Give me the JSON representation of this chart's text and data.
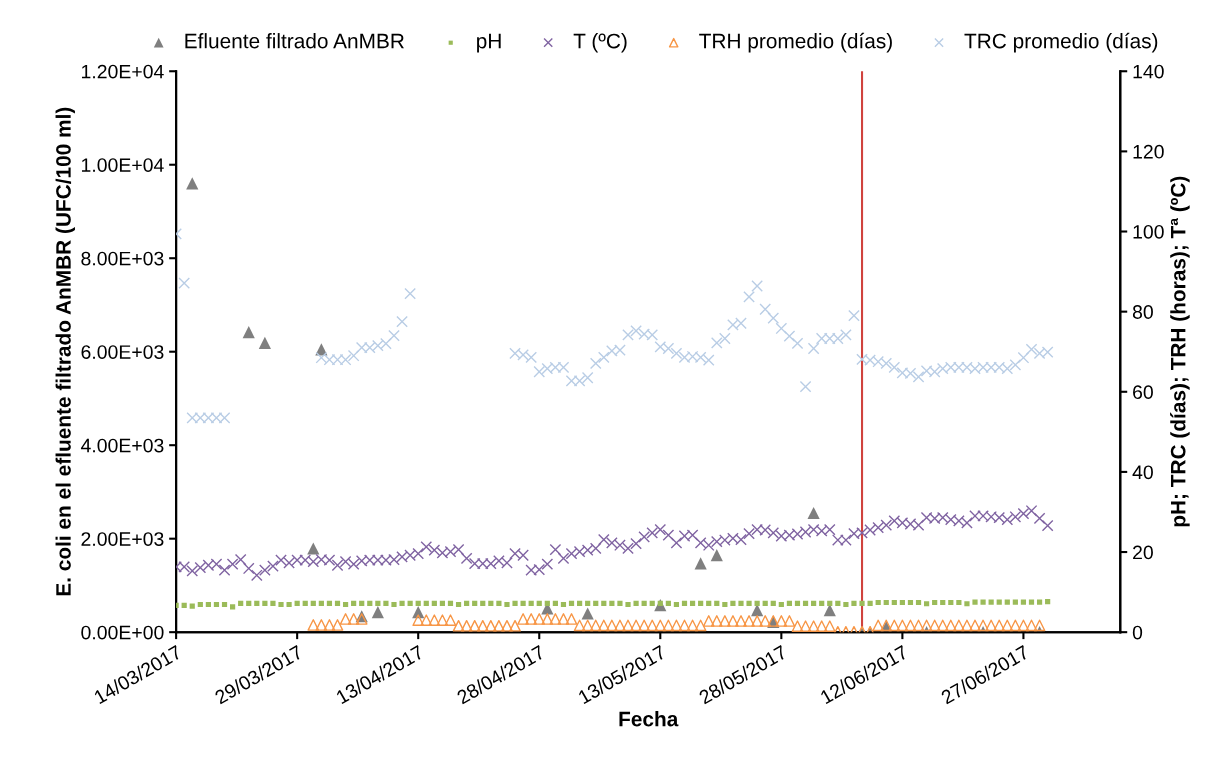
{
  "chart_data": {
    "type": "scatter",
    "xlabel": "Fecha",
    "ylabel": "E. coli en el efluente filtrado AnMBR (UFC/100 ml)",
    "y2label": "pH; TRC (días); TRH (horas); Tª (ºC)",
    "legend": "top",
    "grid": false,
    "x": [
      "2017-03-14",
      "2017-03-15",
      "2017-03-16",
      "2017-03-17",
      "2017-03-18",
      "2017-03-19",
      "2017-03-20",
      "2017-03-21",
      "2017-03-22",
      "2017-03-23",
      "2017-03-24",
      "2017-03-25",
      "2017-03-26",
      "2017-03-27",
      "2017-03-28",
      "2017-03-29",
      "2017-03-30",
      "2017-03-31",
      "2017-04-01",
      "2017-04-02",
      "2017-04-03",
      "2017-04-04",
      "2017-04-05",
      "2017-04-06",
      "2017-04-07",
      "2017-04-08",
      "2017-04-09",
      "2017-04-10",
      "2017-04-11",
      "2017-04-12",
      "2017-04-13",
      "2017-04-14",
      "2017-04-15",
      "2017-04-16",
      "2017-04-17",
      "2017-04-18",
      "2017-04-19",
      "2017-04-20",
      "2017-04-21",
      "2017-04-22",
      "2017-04-23",
      "2017-04-24",
      "2017-04-25",
      "2017-04-26",
      "2017-04-27",
      "2017-04-28",
      "2017-04-29",
      "2017-04-30",
      "2017-05-01",
      "2017-05-02",
      "2017-05-03",
      "2017-05-04",
      "2017-05-05",
      "2017-05-06",
      "2017-05-07",
      "2017-05-08",
      "2017-05-09",
      "2017-05-10",
      "2017-05-11",
      "2017-05-12",
      "2017-05-13",
      "2017-05-14",
      "2017-05-15",
      "2017-05-16",
      "2017-05-17",
      "2017-05-18",
      "2017-05-19",
      "2017-05-20",
      "2017-05-21",
      "2017-05-22",
      "2017-05-23",
      "2017-05-24",
      "2017-05-25",
      "2017-05-26",
      "2017-05-27",
      "2017-05-28",
      "2017-05-29",
      "2017-05-30",
      "2017-05-31",
      "2017-06-01",
      "2017-06-02",
      "2017-06-03",
      "2017-06-04",
      "2017-06-05",
      "2017-06-06",
      "2017-06-07",
      "2017-06-08",
      "2017-06-09",
      "2017-06-10",
      "2017-06-11",
      "2017-06-12",
      "2017-06-13",
      "2017-06-14",
      "2017-06-15",
      "2017-06-16",
      "2017-06-17",
      "2017-06-18",
      "2017-06-19",
      "2017-06-20",
      "2017-06-21",
      "2017-06-22",
      "2017-06-23",
      "2017-06-24",
      "2017-06-25",
      "2017-06-26",
      "2017-06-27",
      "2017-06-28",
      "2017-06-29",
      "2017-06-30"
    ],
    "xlim": [
      "2017-03-14",
      "2017-07-09"
    ],
    "xticks": [
      {
        "value": "2017-03-14",
        "label": "14/03/2017"
      },
      {
        "value": "2017-03-29",
        "label": "29/03/2017"
      },
      {
        "value": "2017-04-13",
        "label": "13/04/2017"
      },
      {
        "value": "2017-04-28",
        "label": "28/04/2017"
      },
      {
        "value": "2017-05-13",
        "label": "13/05/2017"
      },
      {
        "value": "2017-05-28",
        "label": "28/05/2017"
      },
      {
        "value": "2017-06-12",
        "label": "12/06/2017"
      },
      {
        "value": "2017-06-27",
        "label": "27/06/2017"
      }
    ],
    "ylim": [
      0,
      12000
    ],
    "yticks": [
      {
        "value": 0,
        "label": "0.00E+00"
      },
      {
        "value": 2000,
        "label": "2.00E+03"
      },
      {
        "value": 4000,
        "label": "4.00E+03"
      },
      {
        "value": 6000,
        "label": "6.00E+03"
      },
      {
        "value": 8000,
        "label": "8.00E+03"
      },
      {
        "value": 10000,
        "label": "1.00E+04"
      },
      {
        "value": 12000,
        "label": "1.20E+04"
      }
    ],
    "y2lim": [
      0,
      140
    ],
    "y2ticks": [
      0,
      20,
      40,
      60,
      80,
      100,
      120,
      140
    ],
    "ref_lines": [
      {
        "axis": "x",
        "value": "2017-06-07",
        "color": "#d0433e"
      }
    ],
    "series": [
      {
        "name": "Efluente filtrado AnMBR",
        "color": "#7f7f7f",
        "marker": "triangle",
        "values": [
          null,
          null,
          9600,
          null,
          null,
          null,
          null,
          null,
          null,
          6420,
          null,
          6190,
          null,
          null,
          null,
          null,
          null,
          1790,
          6050,
          null,
          null,
          null,
          null,
          340,
          null,
          430,
          null,
          null,
          null,
          null,
          430,
          null,
          null,
          null,
          null,
          null,
          null,
          null,
          null,
          null,
          null,
          null,
          null,
          null,
          null,
          null,
          510,
          null,
          null,
          null,
          null,
          400,
          null,
          null,
          null,
          null,
          null,
          null,
          null,
          null,
          580,
          null,
          null,
          null,
          null,
          1470,
          null,
          1650,
          null,
          null,
          null,
          null,
          470,
          null,
          220,
          null,
          null,
          null,
          null,
          2550,
          null,
          470,
          null,
          null,
          null,
          0,
          0,
          null,
          110,
          null,
          null,
          null,
          null,
          0,
          null,
          null,
          null,
          null,
          null,
          null,
          0,
          null,
          null,
          null,
          null,
          null,
          null,
          0,
          null
        ]
      },
      {
        "name": "pH",
        "color": "#9bbb59",
        "marker": "square",
        "axis": "y2",
        "values": [
          6.7,
          6.7,
          6.5,
          6.9,
          6.9,
          6.9,
          6.9,
          6.3,
          7.2,
          7.2,
          7.2,
          7.2,
          7.2,
          6.9,
          6.9,
          7.2,
          7.2,
          7.2,
          7.2,
          7.2,
          7.2,
          6.9,
          7.2,
          7.2,
          7.2,
          7.2,
          7.2,
          6.9,
          7.2,
          7.2,
          7.2,
          7.2,
          7.2,
          7.2,
          7.2,
          6.9,
          7.2,
          7.2,
          7.2,
          7.2,
          7.2,
          6.9,
          7.2,
          7.2,
          7.2,
          7.2,
          7.2,
          7.2,
          6.9,
          7.2,
          7.2,
          7.2,
          7.2,
          7.2,
          7.2,
          7.2,
          6.9,
          7.2,
          7.2,
          7.2,
          7.2,
          7.2,
          6.9,
          7.2,
          7.2,
          7.2,
          7.2,
          7.2,
          6.9,
          7.2,
          7.2,
          7.2,
          7.2,
          7.2,
          7.2,
          6.9,
          7.2,
          7.2,
          7.2,
          7.2,
          7.2,
          7.2,
          7.2,
          6.9,
          7.2,
          7.2,
          7.2,
          7.4,
          7.4,
          7.4,
          7.4,
          7.4,
          7.4,
          7.1,
          7.4,
          7.4,
          7.4,
          7.4,
          7.1,
          7.5,
          7.5,
          7.5,
          7.5,
          7.5,
          7.5,
          7.5,
          7.5,
          7.5,
          7.6
        ]
      },
      {
        "name": "T (ºC)",
        "color": "#8064a2",
        "marker": "cross",
        "axis": "y2",
        "values": [
          16.3,
          16.3,
          15.3,
          16.1,
          16.7,
          17.0,
          15.5,
          17.0,
          18.1,
          15.9,
          14.2,
          15.5,
          16.5,
          18.0,
          17.3,
          18.0,
          18.0,
          17.6,
          18.1,
          18.0,
          16.7,
          17.6,
          17.0,
          17.8,
          18.0,
          18.0,
          18.0,
          18.1,
          18.8,
          19.2,
          19.6,
          21.3,
          20.5,
          19.8,
          20.1,
          20.6,
          18.4,
          17.1,
          17.1,
          17.1,
          17.8,
          17.3,
          19.6,
          19.2,
          15.5,
          15.6,
          17.0,
          20.6,
          18.4,
          19.6,
          20.1,
          20.5,
          20.9,
          23.1,
          22.3,
          21.7,
          20.9,
          22.1,
          23.8,
          24.8,
          25.6,
          24.2,
          22.3,
          24.0,
          24.2,
          22.3,
          21.7,
          22.6,
          23.0,
          23.4,
          23.1,
          24.6,
          25.6,
          25.5,
          24.8,
          24.0,
          24.2,
          24.5,
          25.0,
          25.6,
          25.3,
          25.6,
          23.0,
          23.0,
          24.6,
          24.8,
          25.5,
          26.1,
          26.7,
          27.8,
          27.3,
          27.0,
          26.7,
          28.6,
          28.4,
          28.6,
          28.1,
          27.8,
          27.3,
          29.0,
          29.0,
          28.8,
          28.6,
          28.1,
          28.8,
          29.6,
          30.3,
          28.4,
          26.6
        ]
      },
      {
        "name": "TRH promedio (días)",
        "color": "#f79646",
        "marker": "triangle",
        "axis": "y2",
        "values": [
          null,
          null,
          null,
          null,
          null,
          null,
          null,
          null,
          null,
          null,
          null,
          null,
          null,
          null,
          null,
          null,
          null,
          1.8,
          1.8,
          1.8,
          1.8,
          3.3,
          3.3,
          3.3,
          null,
          null,
          null,
          null,
          null,
          null,
          3.0,
          3.0,
          3.0,
          3.0,
          3.0,
          1.6,
          1.6,
          1.6,
          1.6,
          1.6,
          1.6,
          1.6,
          1.6,
          3.3,
          3.3,
          3.3,
          3.3,
          3.3,
          3.3,
          3.3,
          1.7,
          1.7,
          1.7,
          1.7,
          1.7,
          1.7,
          1.7,
          1.7,
          1.7,
          1.7,
          1.7,
          1.7,
          1.7,
          1.7,
          1.7,
          1.7,
          2.8,
          2.8,
          2.8,
          2.8,
          2.8,
          2.8,
          2.8,
          2.8,
          2.8,
          2.8,
          2.8,
          1.5,
          1.5,
          1.5,
          1.5,
          1.5,
          0.1,
          0.1,
          0.1,
          0.1,
          0.1,
          1.7,
          1.7,
          1.7,
          1.7,
          1.7,
          1.7,
          1.7,
          1.7,
          1.7,
          1.7,
          1.7,
          1.7,
          1.7,
          1.7,
          1.7,
          1.7,
          1.7,
          1.7,
          1.7,
          1.7,
          1.7,
          null
        ]
      },
      {
        "name": "TRC promedio (días)",
        "color": "#b9cde5",
        "marker": "cross",
        "axis": "y2",
        "values": [
          99.4,
          87.1,
          53.5,
          53.5,
          53.5,
          53.5,
          53.5,
          null,
          null,
          null,
          null,
          null,
          null,
          null,
          null,
          null,
          null,
          null,
          68.5,
          68.0,
          68.0,
          68.0,
          69.0,
          71.0,
          71.0,
          71.5,
          72.0,
          74.0,
          77.5,
          84.5,
          null,
          null,
          null,
          null,
          null,
          null,
          null,
          null,
          null,
          null,
          null,
          null,
          69.6,
          69.2,
          68.6,
          65.0,
          65.8,
          66.1,
          66.1,
          62.7,
          62.7,
          63.5,
          67.1,
          68.6,
          70.2,
          70.4,
          74.2,
          75.2,
          74.4,
          74.2,
          71.2,
          70.8,
          69.6,
          68.6,
          68.8,
          68.6,
          67.9,
          72.2,
          73.3,
          76.7,
          77.1,
          83.7,
          86.4,
          80.6,
          78.4,
          75.8,
          73.9,
          72.1,
          61.3,
          70.8,
          73.3,
          73.3,
          73.3,
          74.2,
          79.0,
          68.1,
          67.9,
          67.5,
          67.1,
          66.1,
          64.7,
          64.6,
          63.7,
          65.2,
          65.0,
          65.8,
          66.1,
          66.1,
          66.1,
          65.8,
          66.1,
          66.1,
          66.1,
          65.8,
          66.7,
          68.5,
          70.6,
          69.6,
          69.9
        ]
      }
    ]
  }
}
